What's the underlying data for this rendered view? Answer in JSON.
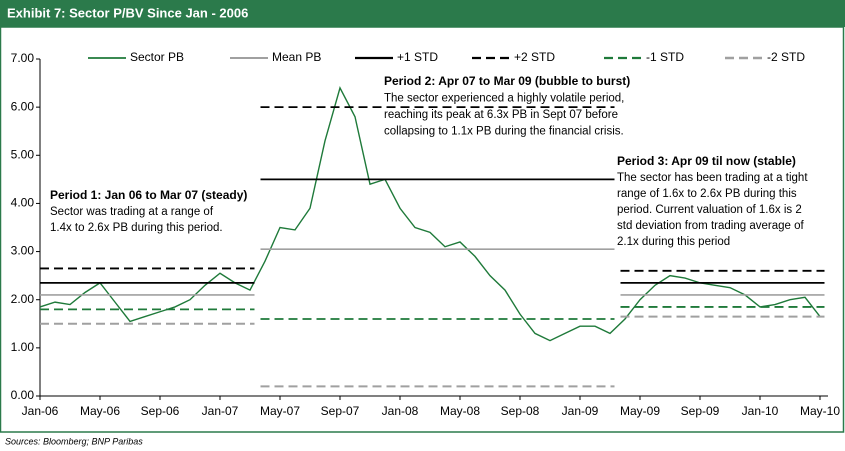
{
  "chart_data": {
    "type": "line",
    "title": "Exhibit 7: Sector P/BV Since Jan - 2006",
    "source": "Sources: Bloomberg; BNP Paribas",
    "categories": [
      "Jan-06",
      null,
      null,
      null,
      "May-06",
      null,
      null,
      null,
      "Sep-06",
      null,
      null,
      null,
      "Jan-07",
      null,
      null,
      null,
      "May-07",
      null,
      null,
      null,
      "Sep-07",
      null,
      null,
      null,
      "Jan-08",
      null,
      null,
      null,
      "May-08",
      null,
      null,
      null,
      "Sep-08",
      null,
      null,
      null,
      "Jan-09",
      null,
      null,
      null,
      "May-09",
      null,
      null,
      null,
      "Sep-09",
      null,
      null,
      null,
      "Jan-10",
      null,
      null,
      null,
      "May-10"
    ],
    "ylim": [
      0,
      7
    ],
    "yticks": [
      {
        "value": 0,
        "label": "0.00"
      },
      {
        "value": 1,
        "label": "1.00"
      },
      {
        "value": 2,
        "label": "2.00"
      },
      {
        "value": 3,
        "label": "3.00"
      },
      {
        "value": 4,
        "label": "4.00"
      },
      {
        "value": 5,
        "label": "5.00"
      },
      {
        "value": 6,
        "label": "6.00"
      },
      {
        "value": 7,
        "label": "7.00"
      }
    ],
    "legend": "top",
    "series": [
      {
        "name": "Sector PB",
        "color": "#1f7a3a",
        "dash": false,
        "width": 1.4,
        "values": [
          1.85,
          1.95,
          1.9,
          2.15,
          2.35,
          1.95,
          1.55,
          1.65,
          1.75,
          1.85,
          2.0,
          2.3,
          2.55,
          2.35,
          2.2,
          2.8,
          3.5,
          3.45,
          3.9,
          5.3,
          6.4,
          5.8,
          4.4,
          4.5,
          3.9,
          3.5,
          3.4,
          3.1,
          3.2,
          2.9,
          2.5,
          2.2,
          1.7,
          1.3,
          1.15,
          1.3,
          1.45,
          1.45,
          1.3,
          1.6,
          2.0,
          2.3,
          2.5,
          2.45,
          2.35,
          2.3,
          2.25,
          2.1,
          1.85,
          1.9,
          2.0,
          2.05,
          1.65
        ]
      },
      {
        "name": "Mean PB",
        "color": "#a0a0a0",
        "dash": false,
        "width": 1.6,
        "values": [
          2.1,
          2.1,
          2.1,
          2.1,
          2.1,
          2.1,
          2.1,
          2.1,
          2.1,
          2.1,
          2.1,
          2.1,
          2.1,
          2.1,
          2.1,
          3.05,
          3.05,
          3.05,
          3.05,
          3.05,
          3.05,
          3.05,
          3.05,
          3.05,
          3.05,
          3.05,
          3.05,
          3.05,
          3.05,
          3.05,
          3.05,
          3.05,
          3.05,
          3.05,
          3.05,
          3.05,
          3.05,
          3.05,
          3.05,
          2.1,
          2.1,
          2.1,
          2.1,
          2.1,
          2.1,
          2.1,
          2.1,
          2.1,
          2.1,
          2.1,
          2.1,
          2.1,
          2.1
        ]
      },
      {
        "name": "+1 STD",
        "color": "#000000",
        "dash": false,
        "width": 1.8,
        "values": [
          2.35,
          2.35,
          2.35,
          2.35,
          2.35,
          2.35,
          2.35,
          2.35,
          2.35,
          2.35,
          2.35,
          2.35,
          2.35,
          2.35,
          2.35,
          4.5,
          4.5,
          4.5,
          4.5,
          4.5,
          4.5,
          4.5,
          4.5,
          4.5,
          4.5,
          4.5,
          4.5,
          4.5,
          4.5,
          4.5,
          4.5,
          4.5,
          4.5,
          4.5,
          4.5,
          4.5,
          4.5,
          4.5,
          4.5,
          2.35,
          2.35,
          2.35,
          2.35,
          2.35,
          2.35,
          2.35,
          2.35,
          2.35,
          2.35,
          2.35,
          2.35,
          2.35,
          2.35
        ]
      },
      {
        "name": "+2 STD",
        "color": "#000000",
        "dash": true,
        "width": 1.8,
        "values": [
          2.65,
          2.65,
          2.65,
          2.65,
          2.65,
          2.65,
          2.65,
          2.65,
          2.65,
          2.65,
          2.65,
          2.65,
          2.65,
          2.65,
          2.65,
          6.0,
          6.0,
          6.0,
          6.0,
          6.0,
          6.0,
          6.0,
          6.0,
          6.0,
          6.0,
          6.0,
          6.0,
          6.0,
          6.0,
          6.0,
          6.0,
          6.0,
          6.0,
          6.0,
          6.0,
          6.0,
          6.0,
          6.0,
          6.0,
          2.6,
          2.6,
          2.6,
          2.6,
          2.6,
          2.6,
          2.6,
          2.6,
          2.6,
          2.6,
          2.6,
          2.6,
          2.6,
          2.6
        ]
      },
      {
        "name": "-1 STD",
        "color": "#1f7a3a",
        "dash": true,
        "width": 1.8,
        "values": [
          1.8,
          1.8,
          1.8,
          1.8,
          1.8,
          1.8,
          1.8,
          1.8,
          1.8,
          1.8,
          1.8,
          1.8,
          1.8,
          1.8,
          1.8,
          1.6,
          1.6,
          1.6,
          1.6,
          1.6,
          1.6,
          1.6,
          1.6,
          1.6,
          1.6,
          1.6,
          1.6,
          1.6,
          1.6,
          1.6,
          1.6,
          1.6,
          1.6,
          1.6,
          1.6,
          1.6,
          1.6,
          1.6,
          1.6,
          1.85,
          1.85,
          1.85,
          1.85,
          1.85,
          1.85,
          1.85,
          1.85,
          1.85,
          1.85,
          1.85,
          1.85,
          1.85,
          1.85
        ]
      },
      {
        "name": "-2 STD",
        "color": "#a0a0a0",
        "dash": true,
        "width": 2,
        "values": [
          1.5,
          1.5,
          1.5,
          1.5,
          1.5,
          1.5,
          1.5,
          1.5,
          1.5,
          1.5,
          1.5,
          1.5,
          1.5,
          1.5,
          1.5,
          0.2,
          0.2,
          0.2,
          0.2,
          0.2,
          0.2,
          0.2,
          0.2,
          0.2,
          0.2,
          0.2,
          0.2,
          0.2,
          0.2,
          0.2,
          0.2,
          0.2,
          0.2,
          0.2,
          0.2,
          0.2,
          0.2,
          0.2,
          0.2,
          1.65,
          1.65,
          1.65,
          1.65,
          1.65,
          1.65,
          1.65,
          1.65,
          1.65,
          1.65,
          1.65,
          1.65,
          1.65,
          1.65
        ]
      }
    ],
    "annotations": [
      {
        "title": "Period 1: Jan 06 to Mar 07 (steady)",
        "lines": [
          "Sector was trading at a range of",
          "1.4x to 2.6x PB during this period."
        ]
      },
      {
        "title": "Period 2: Apr 07 to Mar 09 (bubble to burst)",
        "lines": [
          "The sector experienced a highly volatile period,",
          "reaching its peak at 6.3x PB in Sept 07 before",
          "collapsing to 1.1x PB during  the financial crisis."
        ]
      },
      {
        "title": "Period 3: Apr 09 til now (stable)",
        "lines": [
          "The sector has been trading at a  tight",
          "range of 1.6x to 2.6x PB during this",
          "period. Current valuation of 1.6x is 2",
          "std deviation from trading average of",
          "2.1x during this period"
        ]
      }
    ]
  }
}
